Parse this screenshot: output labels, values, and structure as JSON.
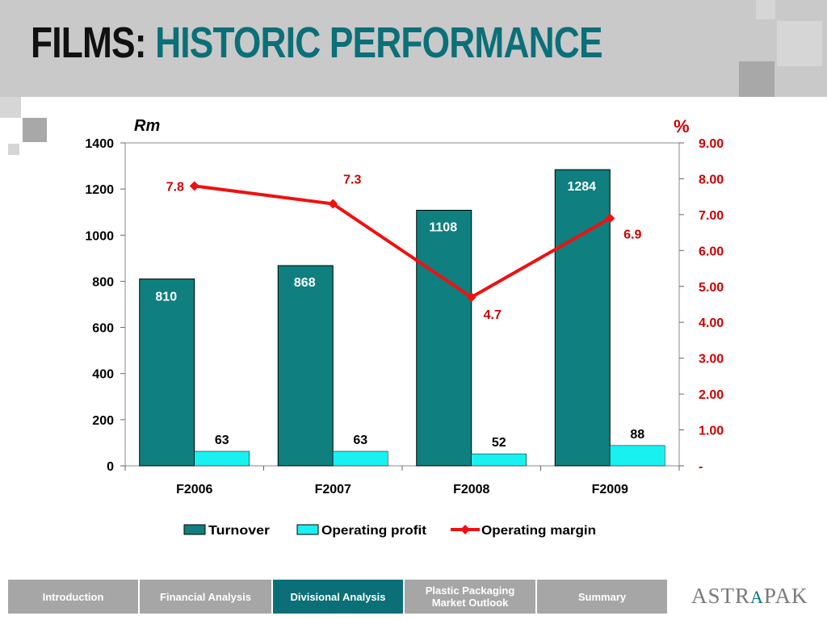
{
  "slide": {
    "title_part1": "FILMS:",
    "title_part2": "HISTORIC PERFORMANCE"
  },
  "chart_data": {
    "type": "bar",
    "categories": [
      "F2006",
      "F2007",
      "F2008",
      "F2009"
    ],
    "series": [
      {
        "name": "Turnover",
        "type": "bar",
        "axis": "left",
        "color": "#0f7f7f",
        "values": [
          810,
          868,
          1108,
          1284
        ],
        "labels": [
          "810",
          "868",
          "1108",
          "1284"
        ]
      },
      {
        "name": "Operating profit",
        "type": "bar",
        "axis": "left",
        "color": "#19f0f0",
        "values": [
          63,
          63,
          52,
          88
        ],
        "labels": [
          "63",
          "63",
          "52",
          "88"
        ]
      },
      {
        "name": "Operating margin",
        "type": "line",
        "axis": "right",
        "color": "#ee1111",
        "values": [
          7.8,
          7.3,
          4.7,
          6.9
        ],
        "labels": [
          "7.8",
          "7.3",
          "4.7",
          "6.9"
        ]
      }
    ],
    "y_left": {
      "label": "Rm",
      "ylim": [
        0,
        1400
      ],
      "ticks": [
        "0",
        "200",
        "400",
        "600",
        "800",
        "1000",
        "1200",
        "1400"
      ]
    },
    "y_right": {
      "label": "%",
      "ylim": [
        0,
        9
      ],
      "ticks": [
        "-",
        "1.00",
        "2.00",
        "3.00",
        "4.00",
        "5.00",
        "6.00",
        "7.00",
        "8.00",
        "9.00"
      ],
      "color": "#cc0000"
    },
    "grid": false,
    "legend": "bottom"
  },
  "nav": {
    "tabs": [
      {
        "label": "Introduction",
        "active": false
      },
      {
        "label": "Financial Analysis",
        "active": false
      },
      {
        "label": "Divisional Analysis",
        "active": true
      },
      {
        "label": "Plastic Packaging Market Outlook",
        "active": false
      },
      {
        "label": "Summary",
        "active": false
      }
    ]
  },
  "logo": {
    "text_left": "ASTR",
    "text_accent": "A",
    "text_right": "PAK"
  }
}
